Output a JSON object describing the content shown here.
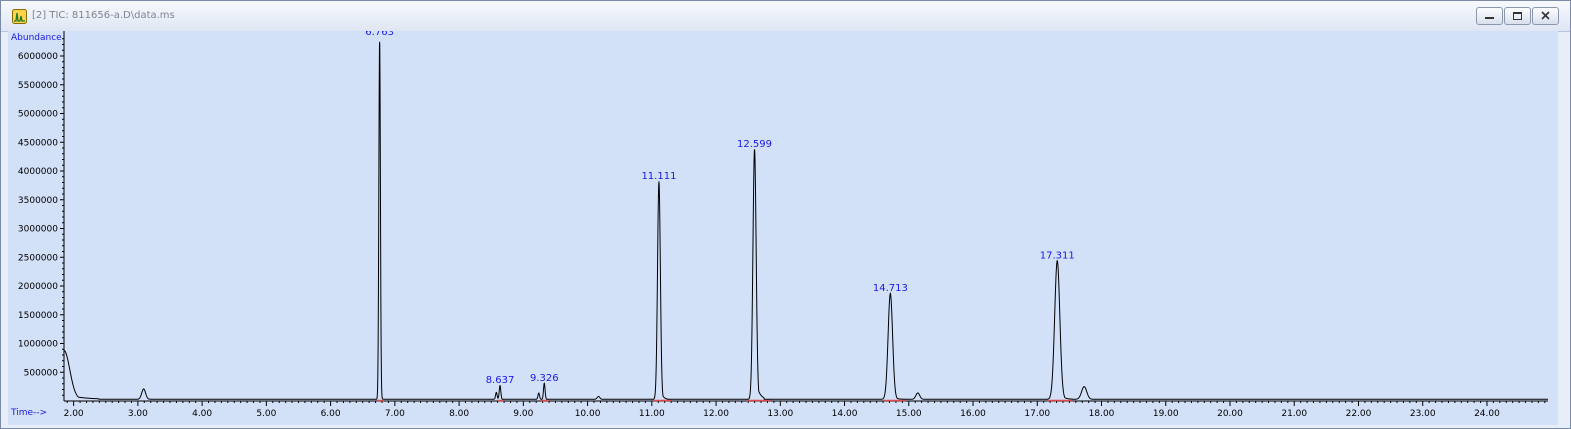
{
  "window": {
    "title": "[2] TIC: 811656-a.D\\data.ms",
    "icons": [
      "chromatogram-app-icon",
      "minimize-icon",
      "restore-icon",
      "close-icon"
    ]
  },
  "chart_data": {
    "type": "line",
    "title": "",
    "xlabel": "Time-->",
    "ylabel": "Abundance",
    "xlim": [
      1.85,
      24.95
    ],
    "ylim": [
      0,
      6400000
    ],
    "grid": false,
    "background_color": "#d2e0f8",
    "line_color": "#000000",
    "label_color": "#1a1ae0",
    "baseline_marker_color": "#e04a4a",
    "x_ticks": [
      2,
      3,
      4,
      5,
      6,
      7,
      8,
      9,
      10,
      11,
      12,
      13,
      14,
      15,
      16,
      17,
      18,
      19,
      20,
      21,
      22,
      23,
      24
    ],
    "x_tick_labels": [
      "2.00",
      "3.00",
      "4.00",
      "5.00",
      "6.00",
      "7.00",
      "8.00",
      "9.00",
      "10.00",
      "11.00",
      "12.00",
      "13.00",
      "14.00",
      "15.00",
      "16.00",
      "17.00",
      "18.00",
      "19.00",
      "20.00",
      "21.00",
      "22.00",
      "23.00",
      "24.00"
    ],
    "y_ticks": [
      500000,
      1000000,
      1500000,
      2000000,
      2500000,
      3000000,
      3500000,
      4000000,
      4500000,
      5000000,
      5500000,
      6000000
    ],
    "y_tick_labels": [
      "500000",
      "1000000",
      "1500000",
      "2000000",
      "2500000",
      "3000000",
      "3500000",
      "4000000",
      "4500000",
      "5000000",
      "5500000",
      "6000000"
    ],
    "peaks": [
      {
        "time": 1.85,
        "abundance": 850000,
        "width": 0.09,
        "tail": 0.22
      },
      {
        "time": 3.09,
        "abundance": 180000,
        "width": 0.03,
        "tail": 0.04
      },
      {
        "time": 6.763,
        "abundance": 6300000,
        "width": 0.012,
        "tail": 0.01,
        "label": "6.763"
      },
      {
        "time": 8.58,
        "abundance": 120000,
        "width": 0.012,
        "tail": 0.01
      },
      {
        "time": 8.637,
        "abundance": 240000,
        "width": 0.012,
        "tail": 0.01,
        "label": "8.637"
      },
      {
        "time": 9.24,
        "abundance": 110000,
        "width": 0.012,
        "tail": 0.01
      },
      {
        "time": 9.326,
        "abundance": 280000,
        "width": 0.012,
        "tail": 0.01,
        "label": "9.326"
      },
      {
        "time": 10.17,
        "abundance": 50000,
        "width": 0.02,
        "tail": 0.02
      },
      {
        "time": 11.111,
        "abundance": 3790000,
        "width": 0.022,
        "tail": 0.03,
        "label": "11.111"
      },
      {
        "time": 12.599,
        "abundance": 4350000,
        "width": 0.025,
        "tail": 0.05,
        "label": "12.599"
      },
      {
        "time": 14.713,
        "abundance": 1840000,
        "width": 0.035,
        "tail": 0.04,
        "label": "14.713"
      },
      {
        "time": 15.14,
        "abundance": 110000,
        "width": 0.03,
        "tail": 0.03
      },
      {
        "time": 17.311,
        "abundance": 2410000,
        "width": 0.04,
        "tail": 0.05,
        "label": "17.311"
      },
      {
        "time": 17.73,
        "abundance": 220000,
        "width": 0.04,
        "tail": 0.04
      }
    ],
    "integration_baselines": [
      [
        6.72,
        6.83
      ],
      [
        8.59,
        8.7
      ],
      [
        9.27,
        9.4
      ],
      [
        11.02,
        11.3
      ],
      [
        12.48,
        12.85
      ],
      [
        14.6,
        14.95
      ],
      [
        17.15,
        17.55
      ]
    ]
  }
}
